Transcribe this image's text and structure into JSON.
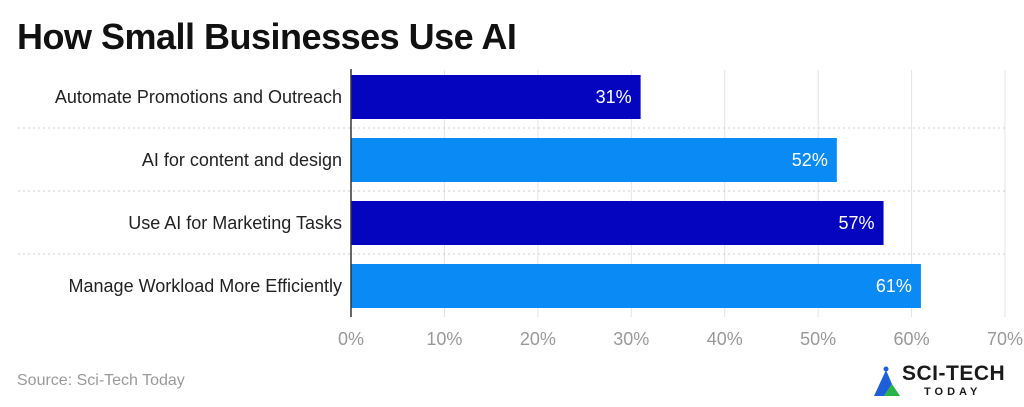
{
  "chart_data": {
    "type": "bar",
    "orientation": "horizontal",
    "title": "How Small Businesses Use AI",
    "categories": [
      "Automate Promotions and Outreach",
      "AI for content and design",
      "Use AI for Marketing Tasks",
      "Manage Workload More Efficiently"
    ],
    "values": [
      31,
      52,
      57,
      61
    ],
    "value_labels": [
      "31%",
      "52%",
      "57%",
      "61%"
    ],
    "bar_colors": [
      "#0505C0",
      "#0A8AF5",
      "#0505C0",
      "#0A8AF5"
    ],
    "xlim": [
      0,
      70
    ],
    "xticks": [
      0,
      10,
      20,
      30,
      40,
      50,
      60,
      70
    ],
    "xtick_labels": [
      "0%",
      "10%",
      "20%",
      "30%",
      "40%",
      "50%",
      "60%",
      "70%"
    ],
    "grid": true,
    "legend": "none"
  },
  "source": "Source: Sci-Tech Today",
  "brand": {
    "name": "SCI-TECH",
    "sub": "TODAY",
    "colors": {
      "triangle_blue": "#1E5FD8",
      "triangle_green": "#27B34A"
    }
  }
}
